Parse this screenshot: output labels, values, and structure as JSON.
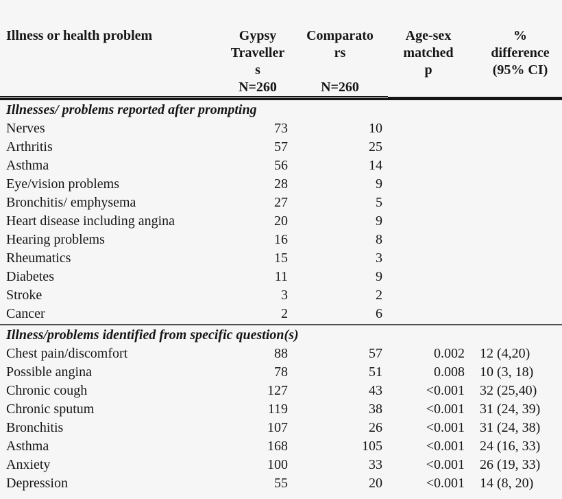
{
  "page": {
    "background_color": "#f6f6f6",
    "text_color": "#161616",
    "rule_color": "#151515"
  },
  "table": {
    "header": {
      "illness": {
        "lines": [
          "Illness or health problem"
        ]
      },
      "travellers": {
        "lines": [
          "Gypsy",
          "Traveller",
          "s",
          "N=260"
        ]
      },
      "comparators": {
        "lines": [
          "Comparato",
          "rs",
          "",
          "N=260"
        ]
      },
      "p": {
        "lines": [
          "Age-sex",
          "matched",
          "p"
        ]
      },
      "diff": {
        "lines": [
          "%",
          "difference",
          "(95% CI)"
        ]
      }
    },
    "sections": [
      {
        "title": "Illnesses/ problems reported after prompting",
        "rows": [
          {
            "name": "Nerves",
            "travellers": "73",
            "comparators": "10",
            "p": "",
            "diff": ""
          },
          {
            "name": "Arthritis",
            "travellers": "57",
            "comparators": "25",
            "p": "",
            "diff": ""
          },
          {
            "name": "Asthma",
            "travellers": "56",
            "comparators": "14",
            "p": "",
            "diff": ""
          },
          {
            "name": "Eye/vision problems",
            "travellers": "28",
            "comparators": "9",
            "p": "",
            "diff": ""
          },
          {
            "name": "Bronchitis/ emphysema",
            "travellers": "27",
            "comparators": "5",
            "p": "",
            "diff": ""
          },
          {
            "name": "Heart disease including angina",
            "travellers": "20",
            "comparators": "9",
            "p": "",
            "diff": ""
          },
          {
            "name": "Hearing problems",
            "travellers": "16",
            "comparators": "8",
            "p": "",
            "diff": ""
          },
          {
            "name": "Rheumatics",
            "travellers": "15",
            "comparators": "3",
            "p": "",
            "diff": ""
          },
          {
            "name": "Diabetes",
            "travellers": "11",
            "comparators": "9",
            "p": "",
            "diff": ""
          },
          {
            "name": "Stroke",
            "travellers": "3",
            "comparators": "2",
            "p": "",
            "diff": ""
          },
          {
            "name": "Cancer",
            "travellers": "2",
            "comparators": "6",
            "p": "",
            "diff": ""
          }
        ]
      },
      {
        "title": "Illness/problems identified from specific question(s)",
        "rows": [
          {
            "name": "Chest pain/discomfort",
            "travellers": "88",
            "comparators": "57",
            "p": "0.002",
            "diff": "12 (4,20)"
          },
          {
            "name": "Possible angina",
            "travellers": "78",
            "comparators": "51",
            "p": "0.008",
            "diff": "10 (3, 18)"
          },
          {
            "name": "Chronic cough",
            "travellers": "127",
            "comparators": "43",
            "p": "<0.001",
            "diff": "32 (25,40)"
          },
          {
            "name": "Chronic sputum",
            "travellers": "119",
            "comparators": "38",
            "p": "<0.001",
            "diff": "31 (24, 39)"
          },
          {
            "name": "Bronchitis",
            "travellers": "107",
            "comparators": "26",
            "p": "<0.001",
            "diff": "31 (24, 38)"
          },
          {
            "name": "Asthma",
            "travellers": "168",
            "comparators": "105",
            "p": "<0.001",
            "diff": "24 (16, 33)"
          },
          {
            "name": "Anxiety",
            "travellers": "100",
            "comparators": "33",
            "p": "<0.001",
            "diff": "26 (19, 33)"
          },
          {
            "name": "Depression",
            "travellers": "55",
            "comparators": "20",
            "p": "<0.001",
            "diff": "14 (8, 20)"
          }
        ]
      }
    ]
  }
}
